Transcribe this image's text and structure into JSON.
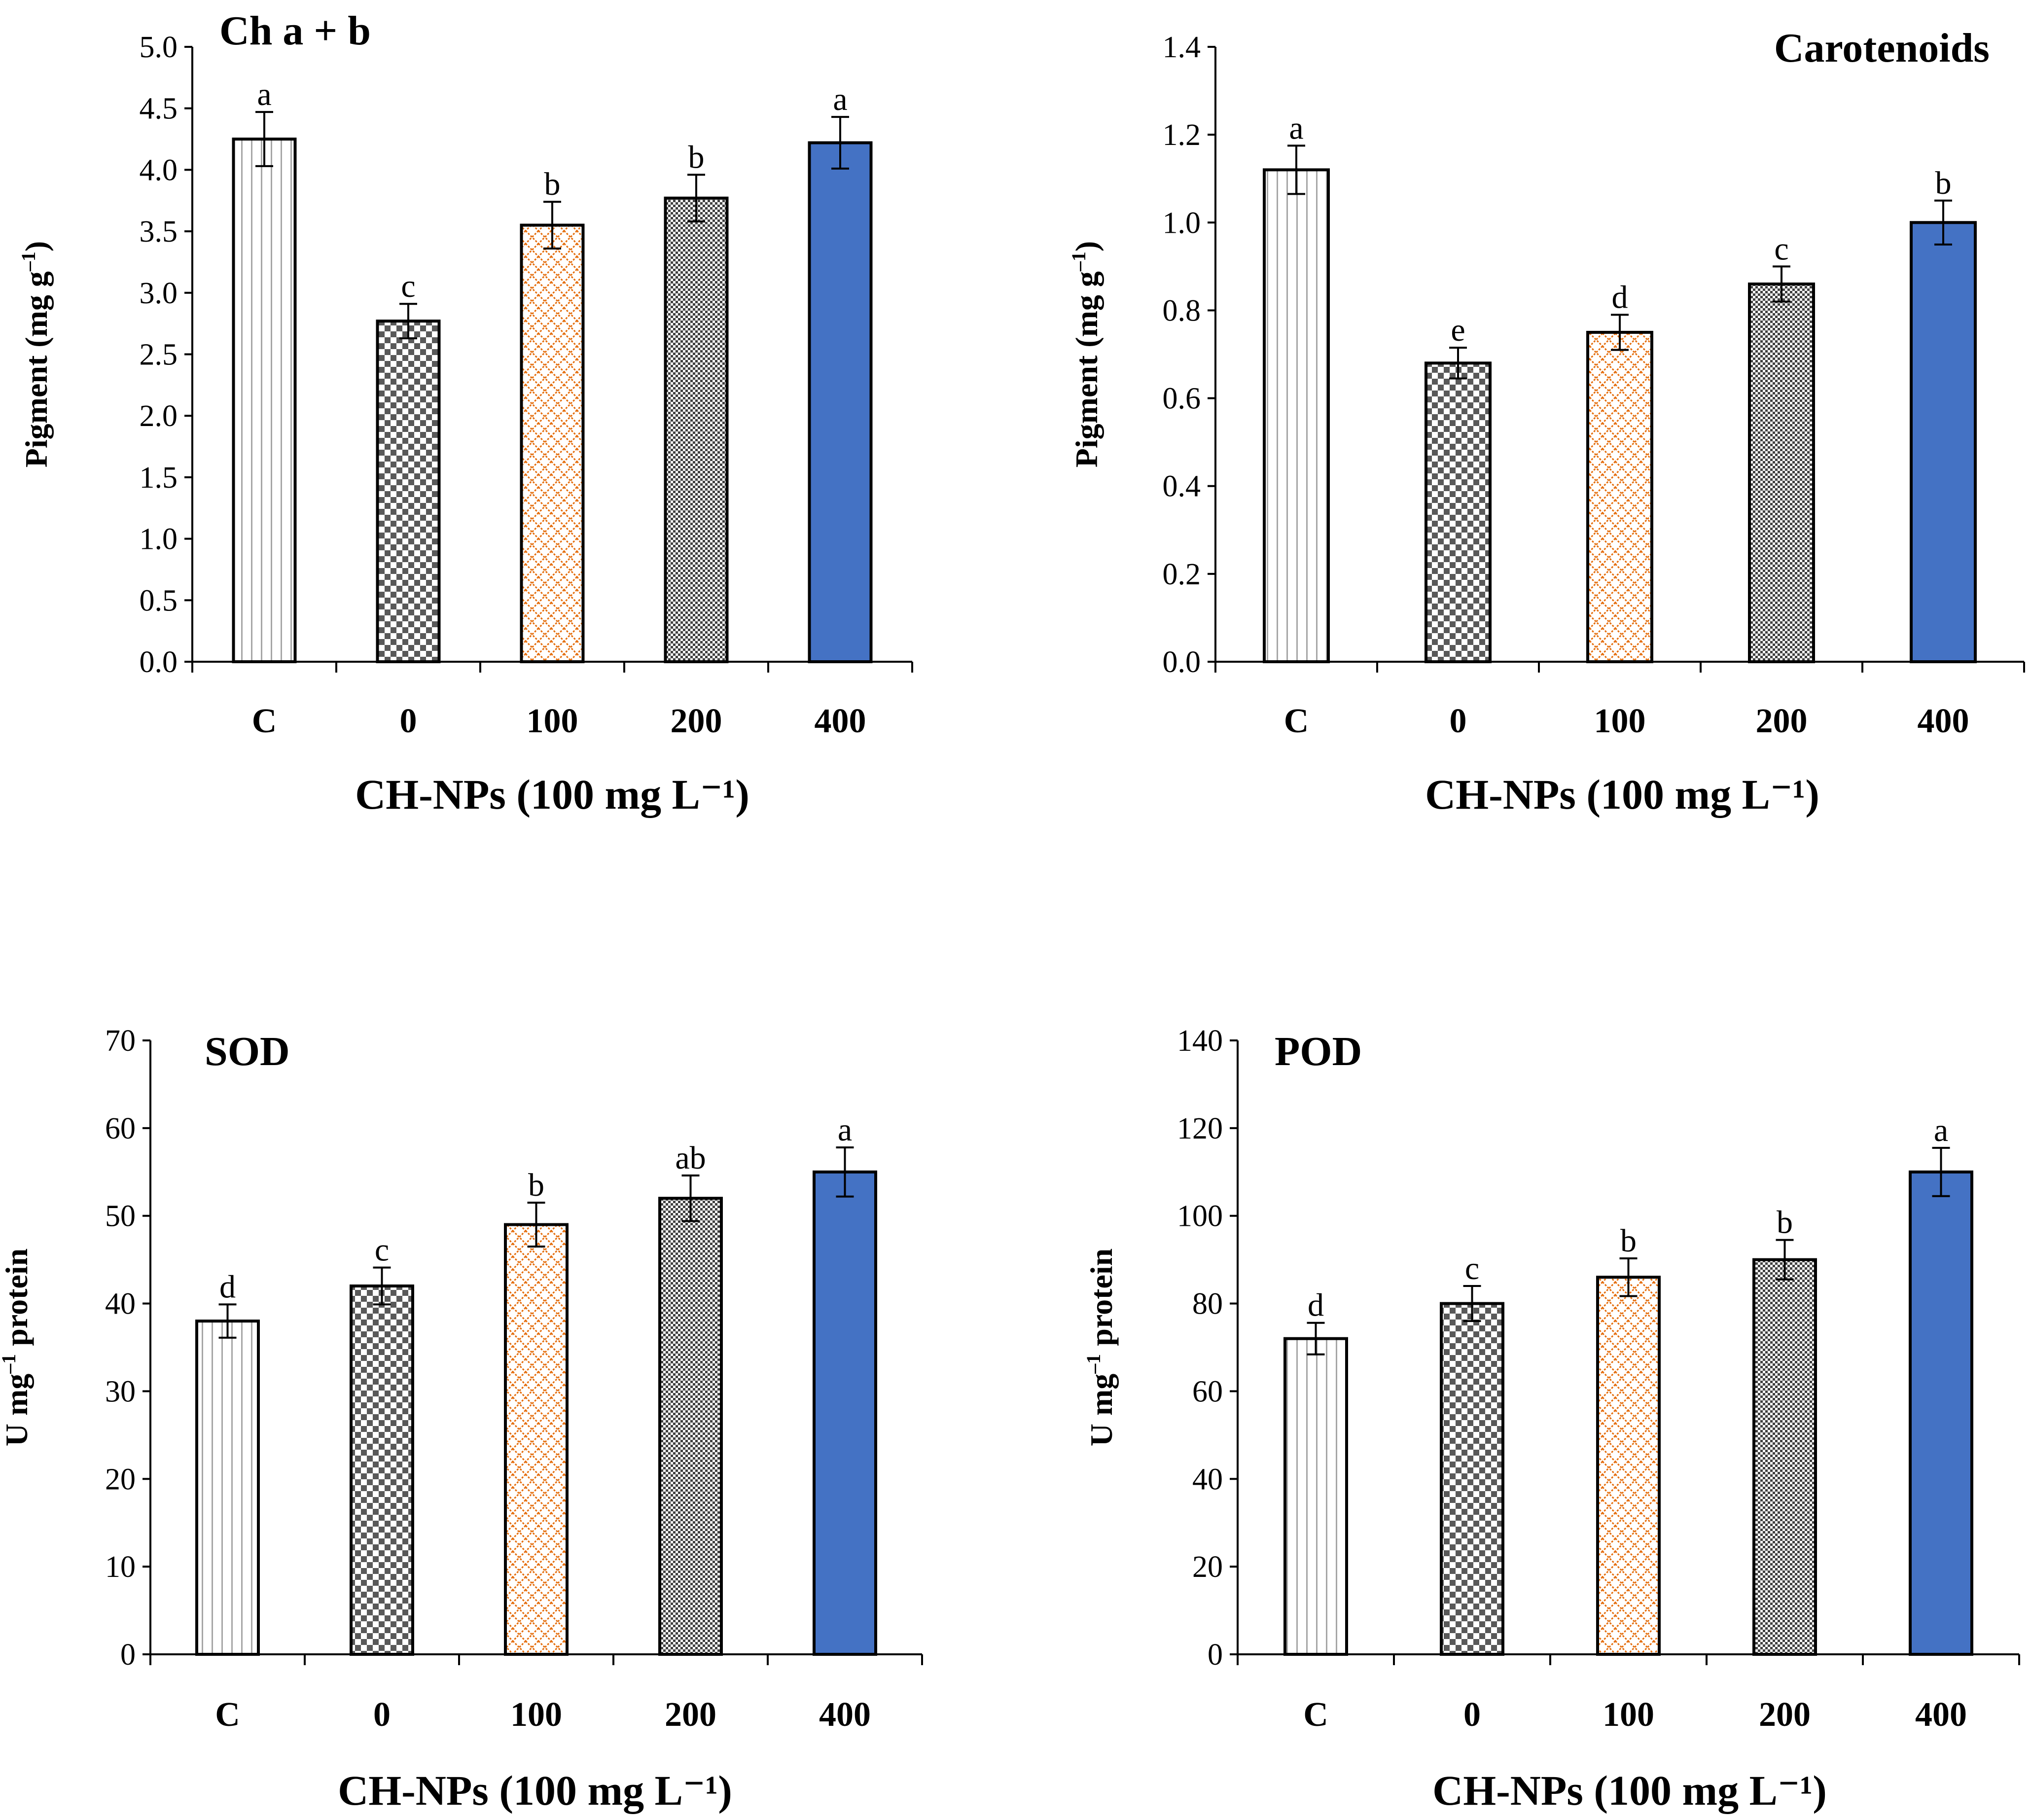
{
  "style": {
    "bar_colors": [
      "#ffffff",
      "#ffffff",
      "#ffffff",
      "#ffffff",
      "#4472c4"
    ],
    "pattern_colors": [
      "#a6a6a6",
      "#595959",
      "#e46c0a",
      "#404040",
      "#4472c4"
    ],
    "patterns": [
      "vertical-lines",
      "checker",
      "diamond-lattice",
      "fine-checker",
      "solid"
    ],
    "axis_color": "#000000"
  },
  "chart_data": [
    {
      "type": "bar",
      "title": "Ch a + b",
      "xlabel": "CH-NPs (100 mg L⁻¹)",
      "ylabel_main": "Pigment (mg g",
      "ylabel_sup": "–1",
      "ylabel_end": ")",
      "categories": [
        "C",
        "0",
        "100",
        "200",
        "400"
      ],
      "values": [
        4.25,
        2.77,
        3.55,
        3.77,
        4.22
      ],
      "errors": [
        0.22,
        0.14,
        0.19,
        0.19,
        0.21
      ],
      "letters": [
        "a",
        "c",
        "b",
        "b",
        "a"
      ],
      "ylim": [
        0,
        5
      ],
      "yticks": [
        "0.0",
        "0.5",
        "1.0",
        "1.5",
        "2.0",
        "2.5",
        "3.0",
        "3.5",
        "4.0",
        "4.5",
        "5.0"
      ]
    },
    {
      "type": "bar",
      "title": "Carotenoids",
      "xlabel": "CH-NPs (100 mg L⁻¹)",
      "ylabel_main": "Pigment  (mg g",
      "ylabel_sup": "–1",
      "ylabel_end": ")",
      "categories": [
        "C",
        "0",
        "100",
        "200",
        "400"
      ],
      "values": [
        1.12,
        0.68,
        0.75,
        0.86,
        1.0
      ],
      "errors": [
        0.055,
        0.035,
        0.04,
        0.04,
        0.05
      ],
      "letters": [
        "a",
        "e",
        "d",
        "c",
        "b"
      ],
      "ylim": [
        0,
        1.4
      ],
      "yticks": [
        "0.0",
        "0.2",
        "0.4",
        "0.6",
        "0.8",
        "1.0",
        "1.2",
        "1.4"
      ]
    },
    {
      "type": "bar",
      "title": "SOD",
      "xlabel": "CH-NPs (100 mg L⁻¹)",
      "ylabel_main": "U mg",
      "ylabel_sup": "–1",
      "ylabel_end": " protein",
      "categories": [
        "C",
        "0",
        "100",
        "200",
        "400"
      ],
      "values": [
        38,
        42,
        49,
        52,
        55
      ],
      "errors": [
        1.9,
        2.1,
        2.5,
        2.6,
        2.8
      ],
      "letters": [
        "d",
        "c",
        "b",
        "ab",
        "a"
      ],
      "ylim": [
        0,
        70
      ],
      "yticks": [
        "0",
        "10",
        "20",
        "30",
        "40",
        "50",
        "60",
        "70"
      ]
    },
    {
      "type": "bar",
      "title": "POD",
      "xlabel": "CH-NPs (100 mg L⁻¹)",
      "ylabel_main": "U mg",
      "ylabel_sup": "–1",
      "ylabel_end": " protein",
      "categories": [
        "C",
        "0",
        "100",
        "200",
        "400"
      ],
      "values": [
        72,
        80,
        86,
        90,
        110
      ],
      "errors": [
        3.6,
        4.0,
        4.3,
        4.5,
        5.5
      ],
      "letters": [
        "d",
        "c",
        "b",
        "b",
        "a"
      ],
      "ylim": [
        0,
        140
      ],
      "yticks": [
        "0",
        "20",
        "40",
        "60",
        "80",
        "100",
        "120",
        "140"
      ]
    }
  ]
}
